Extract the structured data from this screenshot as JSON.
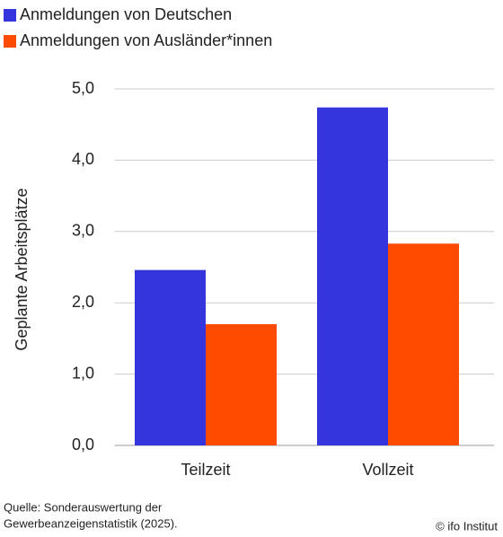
{
  "chart_data": {
    "type": "bar",
    "categories": [
      "Teilzeit",
      "Vollzeit"
    ],
    "series": [
      {
        "name": "Anmeldungen von Deutschen",
        "color": "#3535dd",
        "values": [
          2.46,
          4.74
        ]
      },
      {
        "name": "Anmeldungen von Ausländer*innen",
        "color": "#ff4b00",
        "values": [
          1.7,
          2.83
        ]
      }
    ],
    "y_label": "Geplante Arbeitsplätze",
    "ylim": [
      0,
      5
    ],
    "yticks": [
      {
        "value": 0,
        "label": "0,0"
      },
      {
        "value": 1,
        "label": "1,0"
      },
      {
        "value": 2,
        "label": "2,0"
      },
      {
        "value": 3,
        "label": "3,0"
      },
      {
        "value": 4,
        "label": "4,0"
      },
      {
        "value": 5,
        "label": "5,0"
      }
    ],
    "grid": true,
    "source": [
      "Quelle: Sonderauswertung der",
      "Gewerbeanzeigenstatistik (2025)."
    ],
    "copyright": "© ifo Institut"
  }
}
